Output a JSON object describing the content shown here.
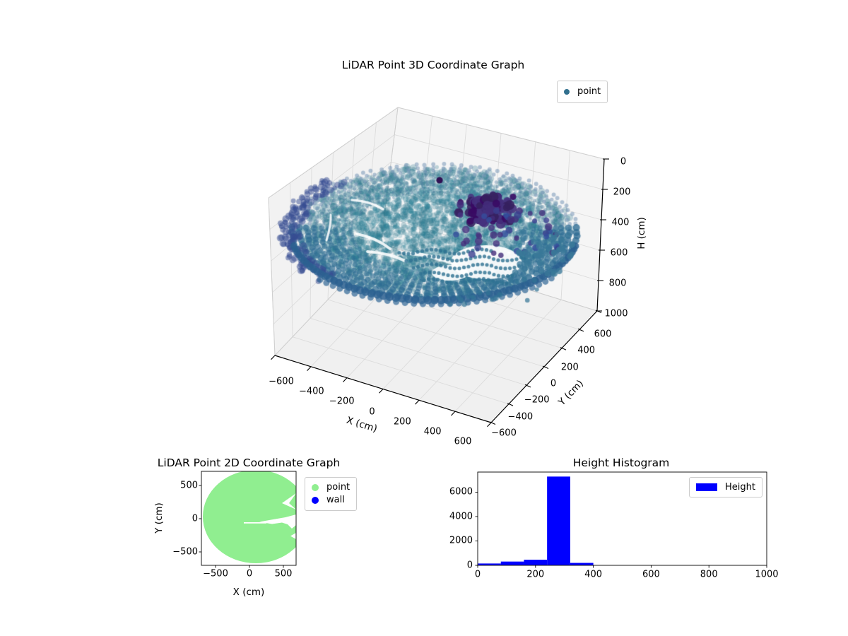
{
  "figure": {
    "background": "#ffffff"
  },
  "plot3d": {
    "title": "LiDAR Point 3D Coordinate Graph",
    "xlabel": "X (cm)",
    "ylabel": "Y (cm)",
    "zlabel": "H (cm)",
    "xticks": [
      "−600",
      "−400",
      "−200",
      "0",
      "200",
      "400",
      "600"
    ],
    "yticks": [
      "−600",
      "−400",
      "−200",
      "0",
      "200",
      "400",
      "600"
    ],
    "zticks": [
      "0",
      "200",
      "400",
      "600",
      "800",
      "1000"
    ],
    "legend": {
      "items": [
        {
          "label": "point",
          "color": "#31708e"
        }
      ]
    },
    "colors": {
      "body_teal": "rgba(42,120,140,0.28)",
      "core_teal": "rgba(36,128,148,0.22)",
      "rim_light": "rgba(118,150,182,0.55)",
      "rim_mid": "rgba(80,125,160,0.4)",
      "front": "rgba(46,108,148,",
      "left_rim": "rgba(54,76,146,0.5)",
      "beads": "rgba(44,96,144,0.85)",
      "beads2": "rgba(48,102,150,0.7)",
      "streak": "rgba(45,112,145,0.8)",
      "scatter_teal": "rgba(58,120,152,0.78)",
      "purples": [
        "#390963",
        "#432d7b",
        "#35205f",
        "#46327e"
      ],
      "navies": [
        "#3a3f8f",
        "#344d9c",
        "#45327e",
        "#432d7b"
      ],
      "isolated": "#2c0a4e"
    }
  },
  "plot2d": {
    "title": "LiDAR Point 2D Coordinate Graph",
    "xlabel": "X (cm)",
    "ylabel": "Y (cm)",
    "xticks": [
      "−500",
      "0",
      "500"
    ],
    "yticks": [
      "500",
      "0",
      "−500"
    ],
    "point_color": "#90ee90",
    "wall_color": "#0000ff",
    "legend": {
      "items": [
        {
          "label": "point",
          "color": "#90ee90"
        },
        {
          "label": "wall",
          "color": "#0000ff"
        }
      ]
    }
  },
  "histogram": {
    "title": "Height Histogram",
    "xticks": [
      "0",
      "200",
      "400",
      "600",
      "800",
      "1000"
    ],
    "yticks": [
      "0",
      "2000",
      "4000",
      "6000"
    ],
    "bar_color": "#0000ff",
    "legend": {
      "items": [
        {
          "label": "Height",
          "color": "#0000ff"
        }
      ]
    }
  },
  "chart_data": [
    {
      "type": "scatter",
      "subplot": "3d",
      "title": "LiDAR Point 3D Coordinate Graph",
      "xlabel": "X (cm)",
      "ylabel": "Y (cm)",
      "zlabel": "H (cm)",
      "xlim": [
        -700,
        700
      ],
      "ylim": [
        -700,
        700
      ],
      "zlim": [
        0,
        1000
      ],
      "zaxis_inverted": true,
      "xticks": [
        -600,
        -400,
        -200,
        0,
        200,
        400,
        600
      ],
      "yticks": [
        -600,
        -400,
        -200,
        0,
        200,
        400,
        600
      ],
      "zticks": [
        0,
        200,
        400,
        600,
        800,
        1000
      ],
      "legend": [
        "point"
      ],
      "legend_position": "upper right (outside axes)",
      "grid": true,
      "series": [
        {
          "name": "point",
          "description": "Dense LiDAR sweep forming a flattened toroidal disc of radius ≈600 cm centered on the sensor, most returns at height ≈250–320 cm (teal, viridis colormap), with indigo/purple low-height clusters (≈0–150 cm) near x≈0–300, y≈0–200, sparse returns scattered to x≈500, y≈−400, and one isolated dark-purple point above the rim"
        }
      ]
    },
    {
      "type": "scatter",
      "subplot": "2d",
      "title": "LiDAR Point 2D Coordinate Graph",
      "xlabel": "X (cm)",
      "ylabel": "Y (cm)",
      "xlim": [
        -700,
        700
      ],
      "ylim": [
        -700,
        700
      ],
      "xticks": [
        -500,
        0,
        500
      ],
      "yticks": [
        500,
        0,
        -500
      ],
      "legend": [
        "point",
        "wall"
      ],
      "series": [
        {
          "name": "point",
          "color": "lightgreen",
          "description": "Thousands of overlapping points forming a solid disc of radius ≈600–800 cm centered slightly right of origin, clipped by the axes; narrow white occlusion wedges cut in from the right side near y≈0 to y≈250"
        },
        {
          "name": "wall",
          "color": "blue",
          "description": "no visible wall points in frame"
        }
      ]
    },
    {
      "type": "bar",
      "subplot": "histogram",
      "title": "Height Histogram",
      "bin_edges": [
        0,
        80,
        160,
        240,
        320,
        400
      ],
      "values": [
        150,
        310,
        460,
        7280,
        200
      ],
      "xlim": [
        0,
        1000
      ],
      "ylim": [
        0,
        7650
      ],
      "xticks": [
        0,
        200,
        400,
        600,
        800,
        1000
      ],
      "yticks": [
        0,
        2000,
        4000,
        6000
      ],
      "legend": [
        "Height"
      ],
      "bar_color": "blue"
    }
  ]
}
